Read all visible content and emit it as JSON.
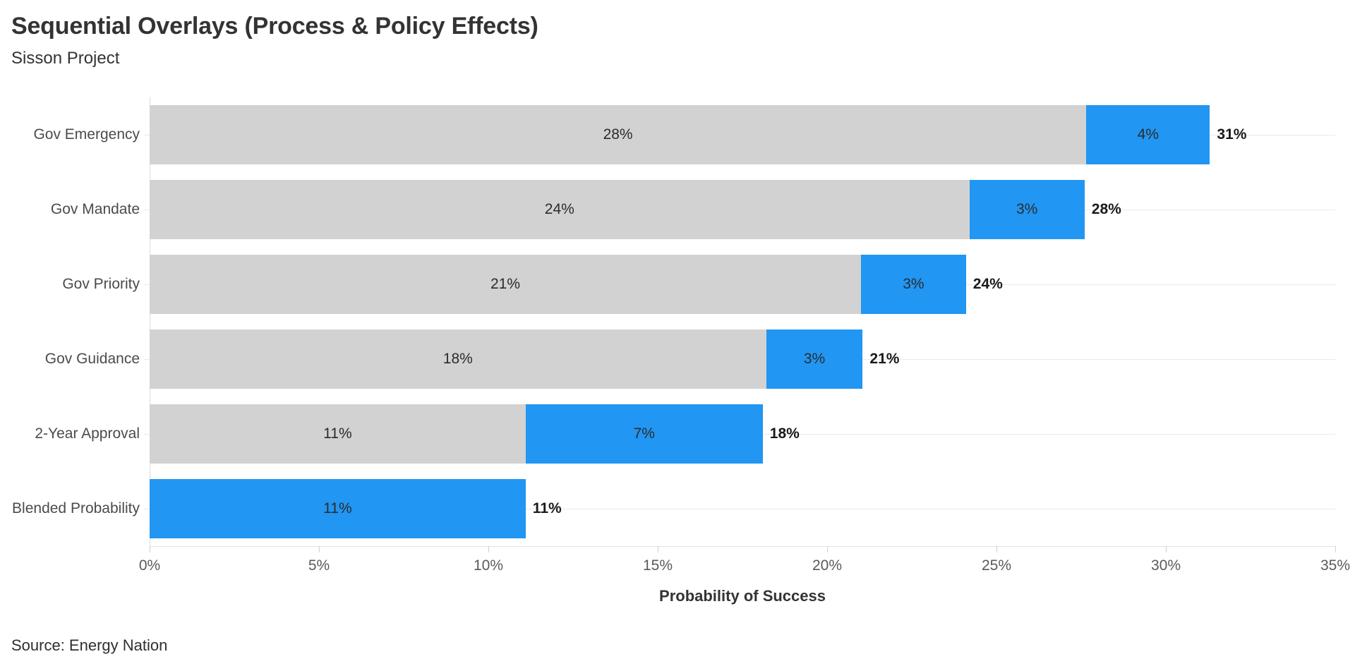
{
  "header": {
    "title": "Sequential Overlays (Process & Policy Effects)",
    "subtitle": "Sisson Project"
  },
  "footer": {
    "source": "Source: Energy Nation"
  },
  "chart_data": {
    "type": "bar",
    "orientation": "horizontal",
    "stacked": true,
    "title": "Sequential Overlays (Process & Policy Effects)",
    "subtitle": "Sisson Project",
    "xlabel": "Probability of Success",
    "ylabel": "",
    "xlim": [
      0,
      35
    ],
    "x_ticks": [
      "0%",
      "5%",
      "10%",
      "15%",
      "20%",
      "25%",
      "30%",
      "35%"
    ],
    "x_tick_values": [
      0,
      5,
      10,
      15,
      20,
      25,
      30,
      35
    ],
    "grid": "horizontal-row-lines",
    "legend": "none",
    "colors": {
      "base_segment": "#d2d2d2",
      "overlay_segment": "#2196f3"
    },
    "rows": [
      {
        "label": "Gov Emergency",
        "base_value": 27.65,
        "overlay_value": 3.65,
        "base_label": "28%",
        "overlay_label": "4%",
        "total_label": "31%"
      },
      {
        "label": "Gov Mandate",
        "base_value": 24.2,
        "overlay_value": 3.4,
        "base_label": "24%",
        "overlay_label": "3%",
        "total_label": "28%"
      },
      {
        "label": "Gov Priority",
        "base_value": 21.0,
        "overlay_value": 3.1,
        "base_label": "21%",
        "overlay_label": "3%",
        "total_label": "24%"
      },
      {
        "label": "Gov Guidance",
        "base_value": 18.2,
        "overlay_value": 2.85,
        "base_label": "18%",
        "overlay_label": "3%",
        "total_label": "21%"
      },
      {
        "label": "2-Year Approval",
        "base_value": 11.1,
        "overlay_value": 7.0,
        "base_label": "11%",
        "overlay_label": "7%",
        "total_label": "18%"
      },
      {
        "label": "Blended Probability",
        "base_value": 0,
        "overlay_value": 11.1,
        "base_label": "",
        "overlay_label": "11%",
        "total_label": "11%"
      }
    ],
    "source": "Source: Energy Nation"
  }
}
